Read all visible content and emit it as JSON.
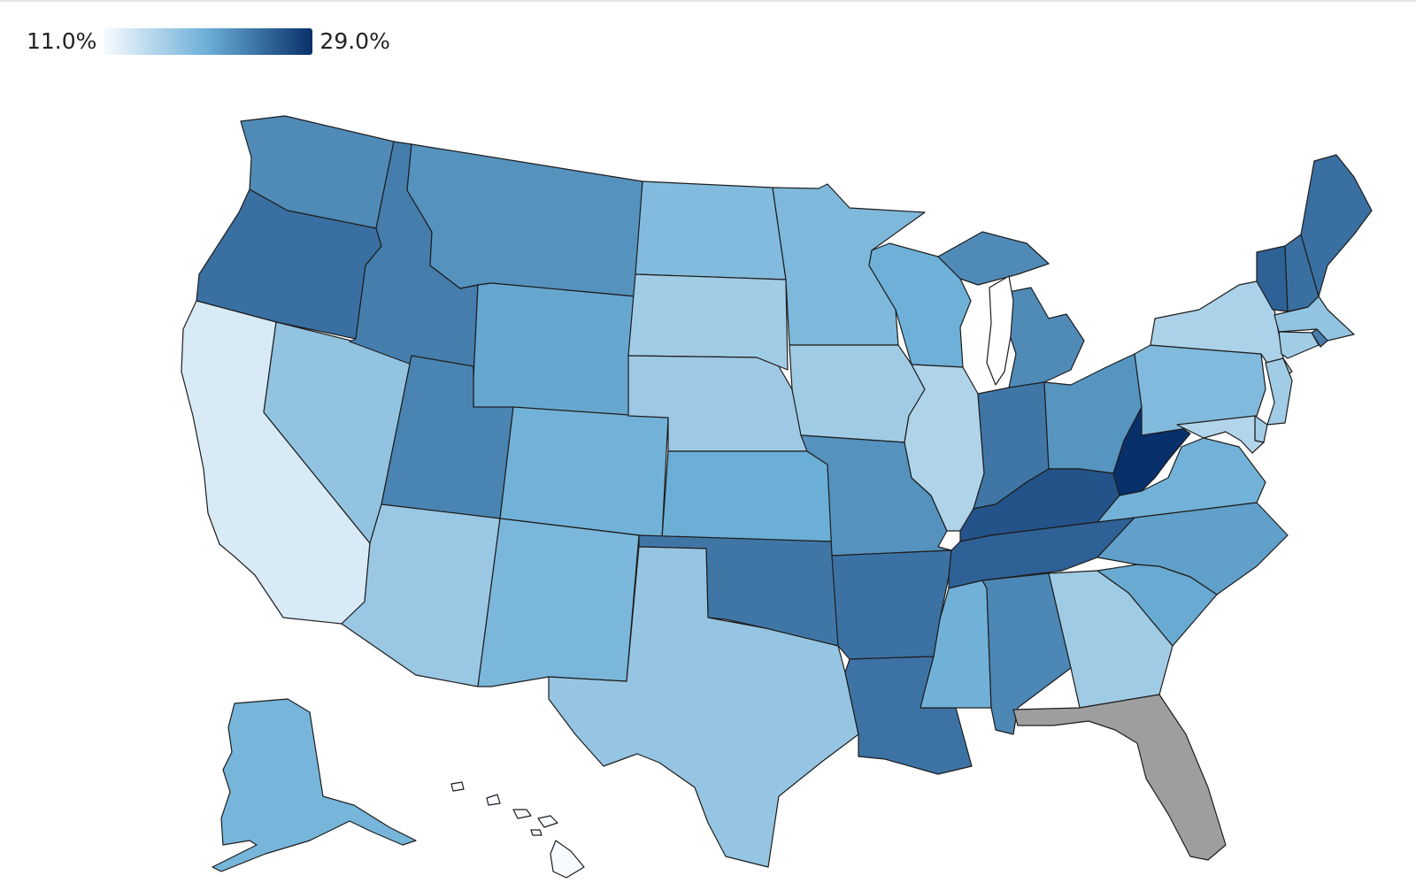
{
  "legend": {
    "min_label": "11.0%",
    "max_label": "29.0%",
    "min_value": 11.0,
    "max_value": 29.0,
    "color_low": "#f7fbff",
    "color_mid": "#6baed6",
    "color_high": "#08306b"
  },
  "colors": {
    "no_data": "#9e9e9e",
    "border": "#1d1d1d",
    "background": "#ffffff"
  },
  "states": {
    "WA": 22.5,
    "OR": 24.5,
    "CA": 13.0,
    "NV": 17.5,
    "ID": 23.5,
    "MT": 22.0,
    "WY": 20.5,
    "UT": 23.0,
    "AZ": 17.0,
    "CO": 19.5,
    "NM": 19.0,
    "ND": 18.5,
    "SD": 16.5,
    "NE": 16.8,
    "KS": 20.0,
    "OK": 24.0,
    "TX": 17.3,
    "MN": 18.8,
    "IA": 16.6,
    "MO": 22.0,
    "AR": 24.3,
    "LA": 24.2,
    "WI": 19.8,
    "IL": 15.6,
    "MI": 22.5,
    "IN": 24.0,
    "OH": 21.8,
    "KY": 26.5,
    "TN": 25.5,
    "MS": 19.6,
    "AL": 22.8,
    "GA": 16.6,
    "SC": 20.3,
    "NC": 21.0,
    "VA": 19.5,
    "WV": 29.0,
    "PA": 18.6,
    "NY": 15.8,
    "VT": 25.5,
    "NH": 24.5,
    "ME": 24.5,
    "MA": 17.5,
    "RI": 23.5,
    "CT": 16.5,
    "NJ": 16.5,
    "DE": 16.4,
    "MD": 15.4,
    "AK": 19.2,
    "HI": 11.0,
    "FL": null
  }
}
